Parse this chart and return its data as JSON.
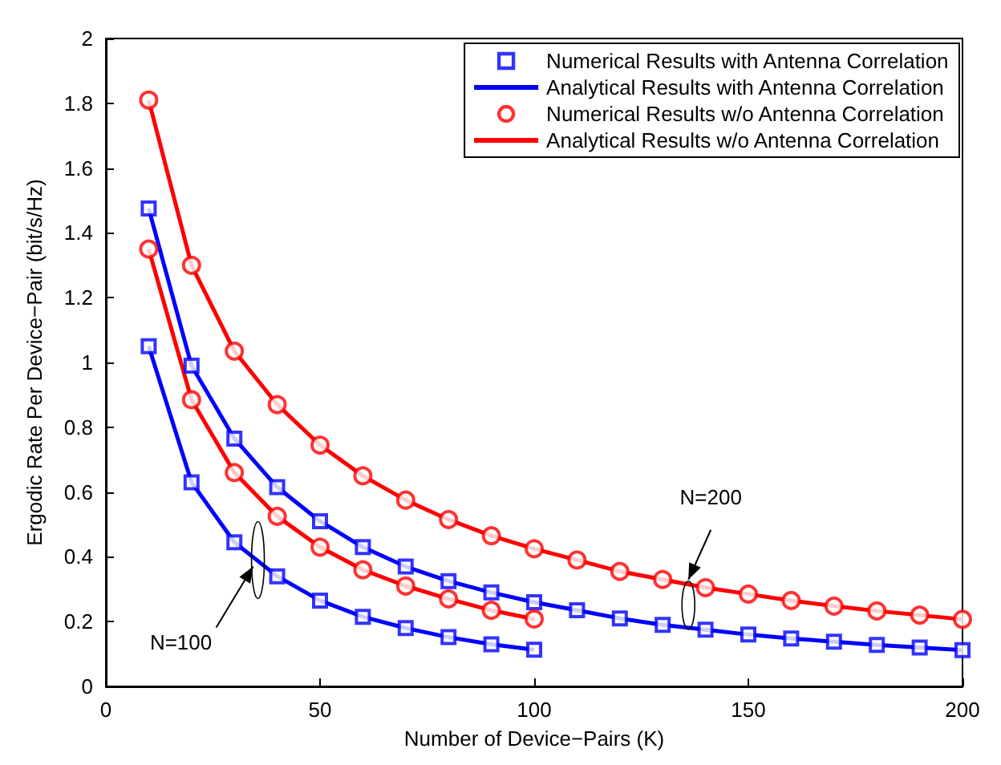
{
  "chart_data": {
    "type": "line",
    "xlabel": "Number of Device−Pairs (K)",
    "ylabel": "Ergodic Rate Per Device−Pair (bit/s/Hz)",
    "xlim": [
      0,
      200
    ],
    "xticks": [
      0,
      50,
      100,
      150,
      200
    ],
    "ylim": [
      0,
      2
    ],
    "yticks": [
      0,
      0.2,
      0.4,
      0.6,
      0.8,
      1,
      1.2,
      1.4,
      1.6,
      1.8,
      2
    ],
    "grid": false,
    "legend": "top right",
    "series": [
      {
        "name": "Numerical Results with Antenna Correlation",
        "type": "scatter",
        "marker": "square",
        "color": "#0000ff",
        "x": [
          10,
          20,
          30,
          40,
          50,
          60,
          70,
          80,
          90,
          100,
          110,
          120,
          130,
          140,
          150,
          160,
          170,
          180,
          190,
          200
        ],
        "values": [
          1.475,
          0.99,
          0.765,
          0.615,
          0.51,
          0.43,
          0.37,
          0.325,
          0.29,
          0.26,
          0.235,
          0.21,
          0.19,
          0.175,
          0.16,
          0.148,
          0.138,
          0.128,
          0.12,
          0.112
        ]
      },
      {
        "type": "scatter",
        "marker": "square",
        "color": "#0000ff",
        "x": [
          10,
          20,
          30,
          40,
          50,
          60,
          70,
          80,
          90,
          100
        ],
        "values": [
          1.05,
          0.63,
          0.445,
          0.34,
          0.265,
          0.215,
          0.18,
          0.152,
          0.13,
          0.113
        ]
      },
      {
        "name": "Analytical Results with Antenna Correlation",
        "marker": "none",
        "line_style": "solid",
        "color": "#0000ff",
        "x": [
          10,
          20,
          30,
          40,
          50,
          60,
          70,
          80,
          90,
          100,
          110,
          120,
          130,
          140,
          150,
          160,
          170,
          180,
          190,
          200
        ],
        "values": [
          1.475,
          0.99,
          0.765,
          0.615,
          0.51,
          0.43,
          0.37,
          0.325,
          0.29,
          0.26,
          0.235,
          0.21,
          0.19,
          0.175,
          0.16,
          0.148,
          0.138,
          0.128,
          0.12,
          0.112
        ]
      },
      {
        "marker": "none",
        "line_style": "solid",
        "color": "#0000ff",
        "x": [
          10,
          20,
          30,
          40,
          50,
          60,
          70,
          80,
          90,
          100
        ],
        "values": [
          1.05,
          0.63,
          0.445,
          0.34,
          0.265,
          0.215,
          0.18,
          0.152,
          0.13,
          0.113
        ]
      },
      {
        "name": "Numerical Results w/o Antenna Correlation",
        "type": "scatter",
        "marker": "circle",
        "color": "#ff0000",
        "x": [
          10,
          20,
          30,
          40,
          50,
          60,
          70,
          80,
          90,
          100,
          110,
          120,
          130,
          140,
          150,
          160,
          170,
          180,
          190,
          200
        ],
        "values": [
          1.81,
          1.3,
          1.035,
          0.87,
          0.745,
          0.65,
          0.575,
          0.515,
          0.465,
          0.425,
          0.39,
          0.355,
          0.33,
          0.305,
          0.285,
          0.265,
          0.248,
          0.233,
          0.22,
          0.207
        ]
      },
      {
        "type": "scatter",
        "marker": "circle",
        "color": "#ff0000",
        "x": [
          10,
          20,
          30,
          40,
          50,
          60,
          70,
          80,
          90,
          100
        ],
        "values": [
          1.35,
          0.885,
          0.66,
          0.525,
          0.43,
          0.36,
          0.31,
          0.27,
          0.235,
          0.208
        ]
      },
      {
        "name": "Analytical Results w/o Antenna Correlation",
        "marker": "none",
        "line_style": "solid",
        "color": "#ff0000",
        "x": [
          10,
          20,
          30,
          40,
          50,
          60,
          70,
          80,
          90,
          100,
          110,
          120,
          130,
          140,
          150,
          160,
          170,
          180,
          190,
          200
        ],
        "values": [
          1.81,
          1.3,
          1.035,
          0.87,
          0.745,
          0.65,
          0.575,
          0.515,
          0.465,
          0.425,
          0.39,
          0.355,
          0.33,
          0.305,
          0.285,
          0.265,
          0.248,
          0.233,
          0.22,
          0.207
        ]
      },
      {
        "marker": "none",
        "line_style": "solid",
        "color": "#ff0000",
        "x": [
          10,
          20,
          30,
          40,
          50,
          60,
          70,
          80,
          90,
          100
        ],
        "values": [
          1.35,
          0.885,
          0.66,
          0.525,
          0.43,
          0.36,
          0.31,
          0.27,
          0.235,
          0.208
        ]
      }
    ],
    "annotations": [
      {
        "text": "N=100",
        "x": 35.5,
        "y": 0.39
      },
      {
        "text": "N=200",
        "x": 136,
        "y": 0.315
      }
    ]
  }
}
